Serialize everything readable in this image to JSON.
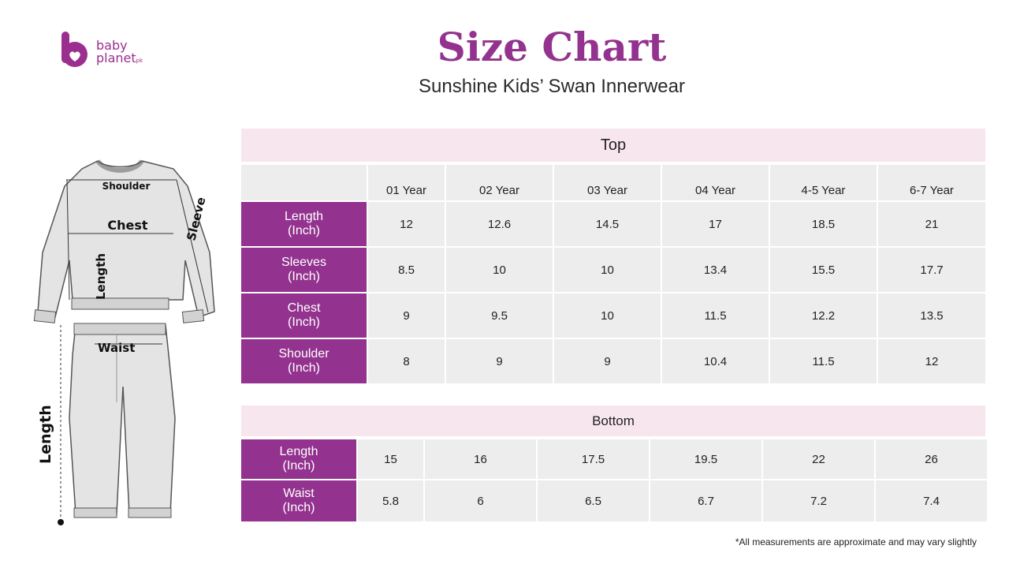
{
  "brand": {
    "line1": "baby",
    "line2": "planet",
    "suffix": "pk",
    "color": "#9b2f8f"
  },
  "title": "Size Chart",
  "subtitle": "Sunshine Kids’ Swan Innerwear",
  "illustration": {
    "labels": {
      "shoulder": "Shoulder",
      "chest": "Chest",
      "sleeve": "Sleeve",
      "top_length": "Length",
      "waist": "Waist",
      "bottom_length": "Length"
    }
  },
  "top": {
    "heading": "Top",
    "columns": [
      "01 Year",
      "02 Year",
      "03 Year",
      "04 Year",
      "4-5 Year",
      "6-7 Year"
    ],
    "rows": [
      {
        "label1": "Length",
        "label2": "(Inch)",
        "values": [
          "12",
          "12.6",
          "14.5",
          "17",
          "18.5",
          "21"
        ]
      },
      {
        "label1": "Sleeves",
        "label2": "(Inch)",
        "values": [
          "8.5",
          "10",
          "10",
          "13.4",
          "15.5",
          "17.7"
        ]
      },
      {
        "label1": "Chest",
        "label2": "(Inch)",
        "values": [
          "9",
          "9.5",
          "10",
          "11.5",
          "12.2",
          "13.5"
        ]
      },
      {
        "label1": "Shoulder",
        "label2": "(Inch)",
        "values": [
          "8",
          "9",
          "9",
          "10.4",
          "11.5",
          "12"
        ]
      }
    ]
  },
  "bottom": {
    "heading": "Bottom",
    "rows": [
      {
        "label1": "Length",
        "label2": "(Inch)",
        "values": [
          "15",
          "16",
          "17.5",
          "19.5",
          "22",
          "26"
        ]
      },
      {
        "label1": "Waist",
        "label2": "(Inch)",
        "values": [
          "5.8",
          "6",
          "6.5",
          "6.7",
          "7.2",
          "7.4"
        ]
      }
    ]
  },
  "footnote": "*All measurements are approximate and may vary slightly",
  "colors": {
    "accent": "#93338f",
    "header_bg": "#f8e6ef",
    "cell_bg": "#ededed"
  }
}
